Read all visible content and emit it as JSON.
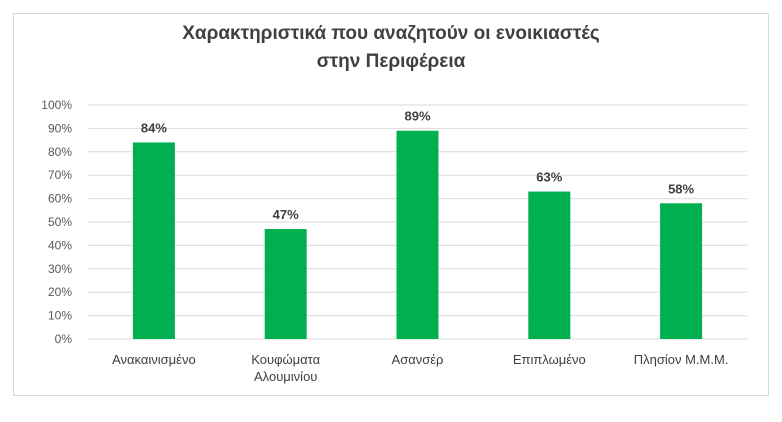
{
  "chart_data": {
    "type": "bar",
    "title_lines": [
      "Χαρακτηριστικά που αναζητούν οι ενοικιαστές",
      "στην Περιφέρεια"
    ],
    "categories": [
      [
        "Ανακαινισμένο"
      ],
      [
        "Κουφώματα",
        "Αλουμινίου"
      ],
      [
        "Ασανσέρ"
      ],
      [
        "Επιπλωμένο"
      ],
      [
        "Πλησίον Μ.Μ.Μ."
      ]
    ],
    "values": [
      84,
      47,
      89,
      63,
      58
    ],
    "data_labels": [
      "84%",
      "47%",
      "89%",
      "63%",
      "58%"
    ],
    "ylim": [
      0,
      100
    ],
    "yticks": [
      0,
      10,
      20,
      30,
      40,
      50,
      60,
      70,
      80,
      90,
      100
    ],
    "ytick_labels": [
      "0%",
      "10%",
      "20%",
      "30%",
      "40%",
      "50%",
      "60%",
      "70%",
      "80%",
      "90%",
      "100%"
    ],
    "grid": true,
    "bar_color": "#00b050",
    "grid_color": "#d9d9d9"
  }
}
